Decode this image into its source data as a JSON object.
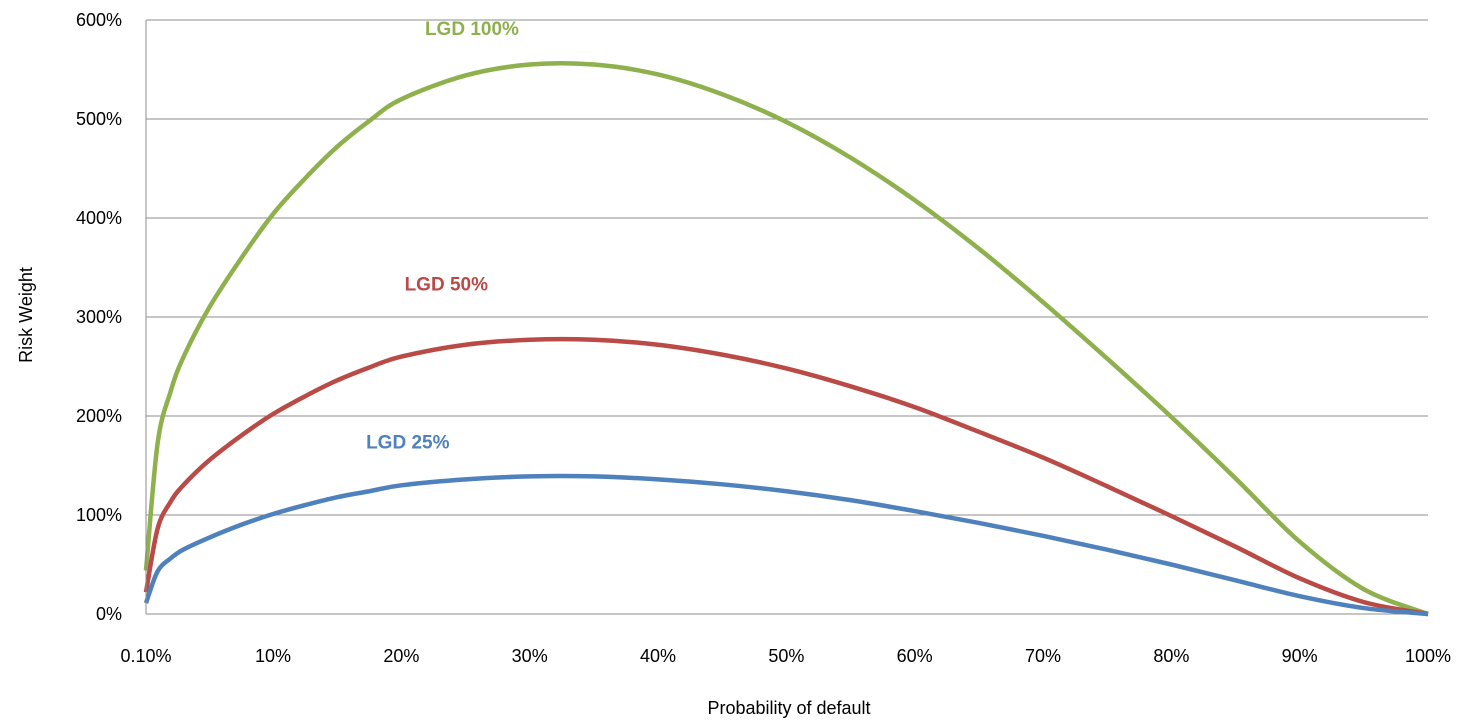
{
  "chart_data": {
    "type": "line",
    "title": "",
    "xlabel": "Probability of default",
    "ylabel": "Risk Weight",
    "xlim": [
      0.1,
      100
    ],
    "ylim": [
      0,
      600
    ],
    "x_ticks": [
      0.1,
      10,
      20,
      30,
      40,
      50,
      60,
      70,
      80,
      90,
      100
    ],
    "x_tick_labels": [
      "0.10%",
      "10%",
      "20%",
      "30%",
      "40%",
      "50%",
      "60%",
      "70%",
      "80%",
      "90%",
      "100%"
    ],
    "y_ticks": [
      0,
      100,
      200,
      300,
      400,
      500,
      600
    ],
    "y_tick_labels": [
      "0%",
      "100%",
      "200%",
      "300%",
      "400%",
      "500%",
      "600%"
    ],
    "grid": "horizontal",
    "legend": "none",
    "x": [
      0.1,
      1,
      2,
      3,
      5,
      7.5,
      10,
      12.5,
      15,
      17.5,
      20,
      25,
      30,
      35,
      40,
      45,
      50,
      55,
      60,
      65,
      70,
      75,
      80,
      85,
      90,
      95,
      100
    ],
    "series": [
      {
        "name": "LGD 100%",
        "color": "#8eb04d",
        "values": [
          44,
          172,
          224,
          259,
          309,
          359,
          404,
          440,
          472,
          498,
          520,
          544,
          555,
          555,
          545,
          525,
          497,
          461,
          418,
          369,
          315,
          258,
          199,
          137,
          73,
          25,
          0
        ]
      },
      {
        "name": "LGD 50%",
        "color": "#b94a45",
        "values": [
          22,
          86,
          113,
          130,
          155,
          180,
          202,
          220,
          236,
          249,
          260,
          272,
          277,
          277,
          272,
          262,
          248,
          230,
          209,
          184,
          158,
          129,
          99,
          68,
          36,
          12,
          0
        ]
      },
      {
        "name": "LGD 25%",
        "color": "#4f81bd",
        "values": [
          11,
          43,
          56,
          65,
          77,
          90,
          101,
          110,
          118,
          124,
          130,
          136,
          139,
          139,
          136,
          131,
          124,
          115,
          104,
          92,
          79,
          65,
          50,
          34,
          18,
          6,
          0
        ]
      }
    ]
  }
}
